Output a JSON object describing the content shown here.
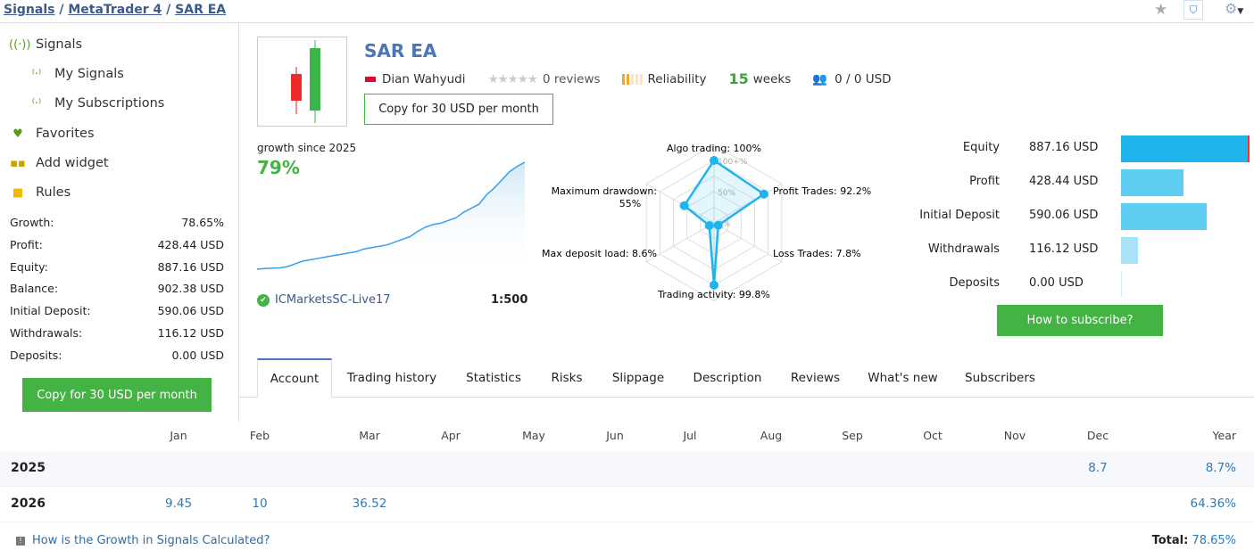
{
  "breadcrumb": [
    "Signals",
    "MetaTrader 4",
    "SAR EA"
  ],
  "toolbar_icons": [
    "star-icon",
    "bookmark-icon",
    "gear-icon"
  ],
  "sidebar": {
    "items": [
      {
        "label": "Signals",
        "icon": "signal-icon"
      },
      {
        "label": "My Signals",
        "icon": "my-signals-icon"
      },
      {
        "label": "My Subscriptions",
        "icon": "subscriptions-icon"
      },
      {
        "label": "Favorites",
        "icon": "favorites-icon"
      },
      {
        "label": "Add widget",
        "icon": "widget-icon"
      },
      {
        "label": "Rules",
        "icon": "rules-icon"
      }
    ],
    "stats": [
      {
        "label": "Growth:",
        "value": "78.65%"
      },
      {
        "label": "Profit:",
        "value": "428.44 USD"
      },
      {
        "label": "Equity:",
        "value": "887.16 USD"
      },
      {
        "label": "Balance:",
        "value": "902.38 USD"
      },
      {
        "label": "Initial Deposit:",
        "value": "590.06 USD"
      },
      {
        "label": "Withdrawals:",
        "value": "116.12 USD"
      },
      {
        "label": "Deposits:",
        "value": "0.00 USD"
      }
    ],
    "copy_button": "Copy for 30 USD per month"
  },
  "header": {
    "title": "SAR EA",
    "author": "Dian Wahyudi",
    "reviews": "0 reviews",
    "rating": 0,
    "reliability_label": "Reliability",
    "reliability_level": 2,
    "weeks_num": "15",
    "weeks_label": "weeks",
    "subscribers": "0 / 0 USD",
    "copy_button": "Copy for 30 USD per month"
  },
  "growth": {
    "label": "growth since 2025",
    "value": "79%",
    "broker": "ICMarketsSC-Live17",
    "leverage": "1:500",
    "curve": [
      0,
      0.5,
      0.8,
      1,
      2,
      4,
      6,
      7,
      8,
      9,
      10,
      11,
      12,
      13,
      15,
      16,
      17,
      18,
      20,
      22,
      24,
      28,
      31,
      33,
      34,
      36,
      38,
      42,
      45,
      48,
      55,
      60,
      66,
      72,
      76,
      79
    ]
  },
  "chart_data": {
    "type": "radar",
    "axes": [
      {
        "label": "Algo trading: 100%",
        "value": 100
      },
      {
        "label": "Profit Trades: 92.2%",
        "value": 92.2
      },
      {
        "label": "Loss Trades: 7.8%",
        "value": 7.8
      },
      {
        "label": "Trading activity: 99.8%",
        "value": 99.8
      },
      {
        "label": "Max deposit load: 8.6%",
        "value": 8.6
      },
      {
        "label": "Maximum drawdown: 55%",
        "value": 55
      }
    ],
    "ticks": [
      "0%",
      "50%",
      "100+%"
    ],
    "range": [
      0,
      100
    ]
  },
  "balance": {
    "rows": [
      {
        "label": "Equity",
        "value": "887.16 USD",
        "amount": 887.16
      },
      {
        "label": "Profit",
        "value": "428.44 USD",
        "amount": 428.44
      },
      {
        "label": "Initial Deposit",
        "value": "590.06 USD",
        "amount": 590.06
      },
      {
        "label": "Withdrawals",
        "value": "116.12 USD",
        "amount": 116.12
      },
      {
        "label": "Deposits",
        "value": "0.00 USD",
        "amount": 0
      }
    ],
    "button": "How to subscribe?"
  },
  "tabs": [
    "Account",
    "Trading history",
    "Statistics",
    "Risks",
    "Slippage",
    "Description",
    "Reviews",
    "What's new",
    "Subscribers"
  ],
  "active_tab": "Account",
  "table": {
    "months": [
      "Jan",
      "Feb",
      "Mar",
      "Apr",
      "May",
      "Jun",
      "Jul",
      "Aug",
      "Sep",
      "Oct",
      "Nov",
      "Dec"
    ],
    "year_header": "Year",
    "rows": [
      {
        "year": "2025",
        "values": [
          "",
          "",
          "",
          "",
          "",
          "",
          "",
          "",
          "",
          "",
          "",
          "8.7"
        ],
        "total": "8.7%"
      },
      {
        "year": "2026",
        "values": [
          "9.45",
          "10",
          "36.52",
          "",
          "",
          "",
          "",
          "",
          "",
          "",
          "",
          ""
        ],
        "total": "64.36%"
      }
    ]
  },
  "footer": {
    "link": "How is the Growth in Signals Calculated?",
    "total_label": "Total:",
    "total_value": "78.65%"
  },
  "colors": {
    "accent_green": "#43b343",
    "link_blue": "#2e6da4",
    "bar_blue": "#1fb5ec",
    "bar_light": "#5dcdf2"
  }
}
